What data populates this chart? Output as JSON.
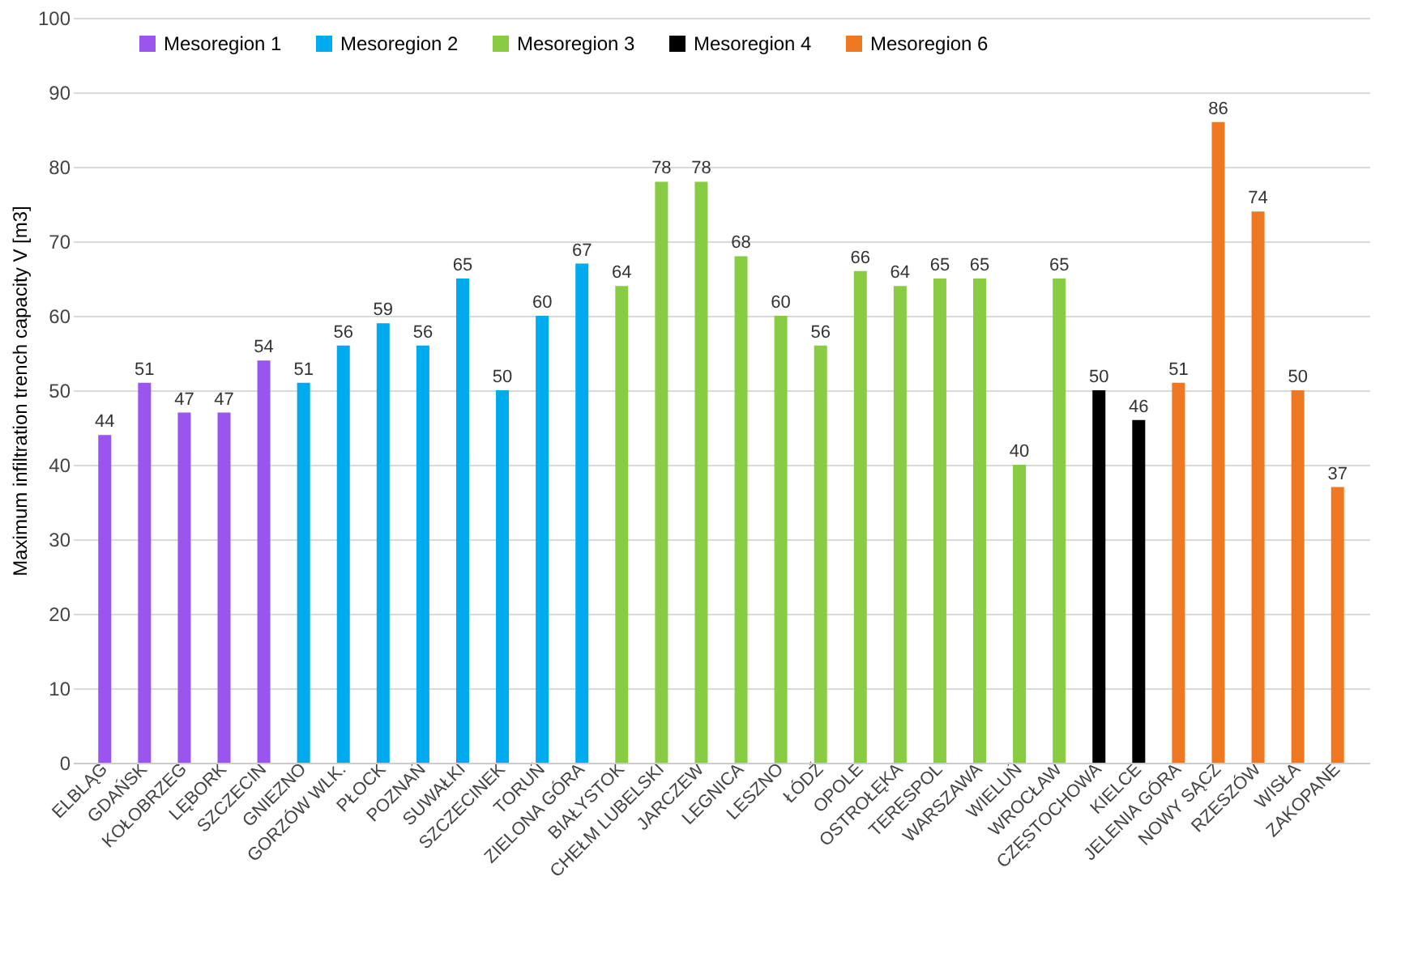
{
  "chart_data": {
    "type": "bar",
    "categories": [
      "ELBLĄG",
      "GDAŃSK",
      "KOŁOBRZEG",
      "LĘBORK",
      "SZCZECIN",
      "GNIEZNO",
      "GORZÓW WLK.",
      "PŁOCK",
      "POZNAŃ",
      "SUWAŁKI",
      "SZCZECINEK",
      "TORUŃ",
      "ZIELONA GÓRA",
      "BIAŁYSTOK",
      "CHEŁM LUBELSKI",
      "JARCZEW",
      "LEGNICA",
      "LESZNO",
      "ŁÓDŹ",
      "OPOLE",
      "OSTROŁĘKA",
      "TERESPOL",
      "WARSZAWA",
      "WIELUŃ",
      "WROCŁAW",
      "CZĘSTOCHOWA",
      "KIELCE",
      "JELENIA GÓRA",
      "NOWY SĄCZ",
      "RZESZÓW",
      "WISŁA",
      "ZAKOPANE"
    ],
    "series": [
      {
        "name": "Mesoregion 1",
        "color": "#9955ee",
        "values": [
          44,
          51,
          47,
          47,
          54,
          null,
          null,
          null,
          null,
          null,
          null,
          null,
          null,
          null,
          null,
          null,
          null,
          null,
          null,
          null,
          null,
          null,
          null,
          null,
          null,
          null,
          null,
          null,
          null,
          null,
          null,
          null
        ]
      },
      {
        "name": "Mesoregion 2",
        "color": "#00aaee",
        "values": [
          null,
          null,
          null,
          null,
          null,
          51,
          56,
          59,
          56,
          65,
          50,
          60,
          67,
          null,
          null,
          null,
          null,
          null,
          null,
          null,
          null,
          null,
          null,
          null,
          null,
          null,
          null,
          null,
          null,
          null,
          null,
          null
        ]
      },
      {
        "name": "Mesoregion 3",
        "color": "#88cc44",
        "values": [
          null,
          null,
          null,
          null,
          null,
          null,
          null,
          null,
          null,
          null,
          null,
          null,
          null,
          64,
          78,
          78,
          68,
          60,
          56,
          66,
          64,
          65,
          65,
          40,
          65,
          null,
          null,
          null,
          null,
          null,
          null,
          null
        ]
      },
      {
        "name": "Mesoregion 4",
        "color": "#000000",
        "values": [
          null,
          null,
          null,
          null,
          null,
          null,
          null,
          null,
          null,
          null,
          null,
          null,
          null,
          null,
          null,
          null,
          null,
          null,
          null,
          null,
          null,
          null,
          null,
          null,
          null,
          50,
          46,
          null,
          null,
          null,
          null,
          null
        ]
      },
      {
        "name": "Mesoregion 6",
        "color": "#ee7722",
        "values": [
          null,
          null,
          null,
          null,
          null,
          null,
          null,
          null,
          null,
          null,
          null,
          null,
          null,
          null,
          null,
          null,
          null,
          null,
          null,
          null,
          null,
          null,
          null,
          null,
          null,
          null,
          null,
          51,
          86,
          74,
          50,
          37
        ]
      }
    ],
    "ylabel": "Maximum infiltration trench capacity  V [m3]",
    "ylim": [
      0,
      100
    ],
    "yticks": [
      0,
      10,
      20,
      30,
      40,
      50,
      60,
      70,
      80,
      90,
      100
    ],
    "grid": "y",
    "legend": "top left",
    "data_labels": true
  }
}
